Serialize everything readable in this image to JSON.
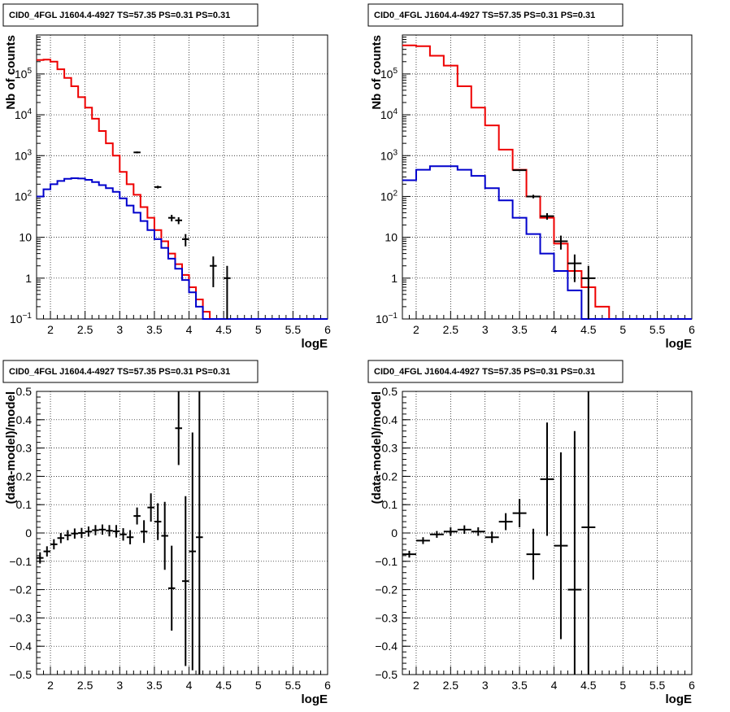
{
  "chart_data": [
    {
      "type": "line",
      "title": "CID0_4FGL J1604.4-4927 TS=57.35 PS=0.31 PS=0.31",
      "xlabel": "logE",
      "ylabel": "Nb of counts",
      "xlim": [
        1.8,
        6
      ],
      "ylim": [
        0.1,
        900000
      ],
      "yscale": "log",
      "grid": true,
      "xticks": [
        "2",
        "2.5",
        "3",
        "3.5",
        "4",
        "4.5",
        "5",
        "5.5",
        "6"
      ],
      "xtick_values": [
        2,
        2.5,
        3,
        3.5,
        4,
        4.5,
        5,
        5.5,
        6
      ],
      "yticks": [
        {
          "value": 0.1,
          "base": "10",
          "exp": "−1"
        },
        {
          "value": 1,
          "base": "1",
          "exp": ""
        },
        {
          "value": 10,
          "base": "10",
          "exp": ""
        },
        {
          "value": 100,
          "base": "10",
          "exp": "2"
        },
        {
          "value": 1000,
          "base": "10",
          "exp": "3"
        },
        {
          "value": 10000,
          "base": "10",
          "exp": "4"
        },
        {
          "value": 100000,
          "base": "10",
          "exp": "5"
        }
      ],
      "series": [
        {
          "color": "#ee0000",
          "style": "step",
          "edges": [
            1.8,
            1.9,
            2.0,
            2.1,
            2.2,
            2.3,
            2.4,
            2.5,
            2.6,
            2.7,
            2.8,
            2.9,
            3.0,
            3.1,
            3.2,
            3.3,
            3.4,
            3.5,
            3.6,
            3.7,
            3.8,
            3.9,
            4.0,
            4.1,
            4.2,
            4.3,
            4.4,
            4.5,
            4.6,
            4.7,
            4.8,
            4.9,
            5.0,
            5.1,
            5.2,
            5.3,
            5.4,
            5.5,
            5.6,
            5.7,
            5.8,
            5.9,
            6.0
          ],
          "values": [
            220000,
            225000,
            200000,
            130000,
            80000,
            50000,
            27000,
            15000,
            8000,
            4000,
            2000,
            1000,
            400,
            200,
            110,
            55,
            30,
            15,
            8,
            4,
            2.2,
            1.2,
            0.6,
            0.3,
            0.15,
            0.1,
            0.1,
            0.1,
            0.1,
            0.1,
            0.1,
            0.1,
            0.1,
            0.1,
            0.1,
            0.1,
            0.1,
            0.1,
            0.1,
            0.1,
            0.1,
            0.1
          ]
        },
        {
          "color": "#0000cc",
          "style": "step",
          "edges": [
            1.8,
            1.9,
            2.0,
            2.1,
            2.2,
            2.3,
            2.4,
            2.5,
            2.6,
            2.7,
            2.8,
            2.9,
            3.0,
            3.1,
            3.2,
            3.3,
            3.4,
            3.5,
            3.6,
            3.7,
            3.8,
            3.9,
            4.0,
            4.1,
            4.2,
            4.3,
            4.4,
            4.5,
            4.6,
            4.7,
            4.8,
            4.9,
            5.0,
            5.1,
            5.2,
            5.3,
            5.4,
            5.5,
            5.6,
            5.7,
            5.8,
            5.9,
            6.0
          ],
          "values": [
            100,
            150,
            200,
            240,
            270,
            280,
            275,
            255,
            225,
            190,
            160,
            130,
            90,
            60,
            40,
            25,
            15,
            9,
            5.5,
            3,
            1.7,
            0.9,
            0.45,
            0.2,
            0.1,
            0.1,
            0.1,
            0.1,
            0.1,
            0.1,
            0.1,
            0.1,
            0.1,
            0.1,
            0.1,
            0.1,
            0.1,
            0.1,
            0.1,
            0.1,
            0.1,
            0.1
          ]
        },
        {
          "color": "#000000",
          "style": "errorbar",
          "points": [
            {
              "x": 3.25,
              "y": 1200,
              "xerr": 0.05,
              "yerr": 60
            },
            {
              "x": 3.55,
              "y": 170,
              "xerr": 0.05,
              "yerr": 13
            },
            {
              "x": 3.75,
              "y": 30,
              "xerr": 0.05,
              "yerr": 5.5
            },
            {
              "x": 3.85,
              "y": 26,
              "xerr": 0.05,
              "yerr": 5
            },
            {
              "x": 3.95,
              "y": 9,
              "xerr": 0.05,
              "yerr": 3
            },
            {
              "x": 4.35,
              "y": 2,
              "xerr": 0.05,
              "yerr": 1.4
            },
            {
              "x": 4.55,
              "y": 1,
              "xerr": 0.05,
              "yerr": 1
            }
          ]
        }
      ]
    },
    {
      "type": "line",
      "title": "CID0_4FGL J1604.4-4927 TS=57.35 PS=0.31 PS=0.31",
      "xlabel": "logE",
      "ylabel": "Nb of counts",
      "xlim": [
        1.8,
        6
      ],
      "ylim": [
        0.1,
        900000
      ],
      "yscale": "log",
      "grid": true,
      "xticks": [
        "2",
        "2.5",
        "3",
        "3.5",
        "4",
        "4.5",
        "5",
        "5.5",
        "6"
      ],
      "xtick_values": [
        2,
        2.5,
        3,
        3.5,
        4,
        4.5,
        5,
        5.5,
        6
      ],
      "yticks": [
        {
          "value": 0.1,
          "base": "10",
          "exp": "−1"
        },
        {
          "value": 1,
          "base": "1",
          "exp": ""
        },
        {
          "value": 10,
          "base": "10",
          "exp": ""
        },
        {
          "value": 100,
          "base": "10",
          "exp": "2"
        },
        {
          "value": 1000,
          "base": "10",
          "exp": "3"
        },
        {
          "value": 10000,
          "base": "10",
          "exp": "4"
        },
        {
          "value": 100000,
          "base": "10",
          "exp": "5"
        }
      ],
      "series": [
        {
          "color": "#ee0000",
          "style": "step",
          "edges": [
            1.8,
            2.0,
            2.2,
            2.4,
            2.6,
            2.8,
            3.0,
            3.2,
            3.4,
            3.6,
            3.8,
            4.0,
            4.2,
            4.4,
            4.6,
            4.8,
            5.0,
            5.2,
            5.4,
            5.6,
            5.8,
            6.0
          ],
          "values": [
            500000,
            480000,
            280000,
            160000,
            50000,
            15000,
            5500,
            1400,
            450,
            100,
            30,
            7,
            1.5,
            0.6,
            0.2,
            0.1,
            0.1,
            0.1,
            0.1,
            0.1,
            0.1
          ],
          "last_visible_edge": 5.0
        },
        {
          "color": "#0000cc",
          "style": "step",
          "edges": [
            1.8,
            2.0,
            2.2,
            2.4,
            2.6,
            2.8,
            3.0,
            3.2,
            3.4,
            3.6,
            3.8,
            4.0,
            4.2,
            4.4,
            4.6,
            4.8,
            5.0,
            5.2,
            5.4,
            5.6,
            5.8,
            6.0
          ],
          "values": [
            250,
            450,
            550,
            550,
            450,
            320,
            160,
            80,
            30,
            12,
            4,
            1.5,
            0.5,
            0.1,
            0.1,
            0.1,
            0.1,
            0.1,
            0.1,
            0.1,
            0.1
          ]
        },
        {
          "color": "#000000",
          "style": "errorbar",
          "points": [
            {
              "x": 3.5,
              "y": 440,
              "xerr": 0.1,
              "yerr": 21
            },
            {
              "x": 3.7,
              "y": 100,
              "xerr": 0.1,
              "yerr": 10
            },
            {
              "x": 3.9,
              "y": 33,
              "xerr": 0.1,
              "yerr": 6
            },
            {
              "x": 4.1,
              "y": 8,
              "xerr": 0.1,
              "yerr": 3
            },
            {
              "x": 4.3,
              "y": 2.3,
              "xerr": 0.1,
              "yerr": 1.5
            },
            {
              "x": 4.5,
              "y": 1,
              "xerr": 0.1,
              "yerr": 1
            }
          ]
        }
      ]
    },
    {
      "type": "scatter",
      "title": "CID0_4FGL J1604.4-4927 TS=57.35 PS=0.31 PS=0.31",
      "xlabel": "logE",
      "ylabel": "(data-model)/model",
      "xlim": [
        1.8,
        6
      ],
      "ylim": [
        -0.5,
        0.5
      ],
      "grid": true,
      "xticks": [
        "2",
        "2.5",
        "3",
        "3.5",
        "4",
        "4.5",
        "5",
        "5.5",
        "6"
      ],
      "xtick_values": [
        2,
        2.5,
        3,
        3.5,
        4,
        4.5,
        5,
        5.5,
        6
      ],
      "yticks": [
        "0.5",
        "0.4",
        "0.3",
        "0.2",
        "0.1",
        "0",
        "−0.1",
        "−0.2",
        "−0.3",
        "−0.4",
        "−0.5"
      ],
      "ytick_values": [
        0.5,
        0.4,
        0.3,
        0.2,
        0.1,
        0,
        -0.1,
        -0.2,
        -0.3,
        -0.4,
        -0.5
      ],
      "series": [
        {
          "color": "#000000",
          "style": "errorbar",
          "points": [
            {
              "x": 1.85,
              "y": -0.088,
              "xerr": 0.05,
              "yerr": 0.02
            },
            {
              "x": 1.95,
              "y": -0.065,
              "xerr": 0.05,
              "yerr": 0.018
            },
            {
              "x": 2.05,
              "y": -0.04,
              "xerr": 0.05,
              "yerr": 0.018
            },
            {
              "x": 2.15,
              "y": -0.018,
              "xerr": 0.05,
              "yerr": 0.018
            },
            {
              "x": 2.25,
              "y": -0.008,
              "xerr": 0.05,
              "yerr": 0.018
            },
            {
              "x": 2.35,
              "y": -0.002,
              "xerr": 0.05,
              "yerr": 0.018
            },
            {
              "x": 2.45,
              "y": 0.0,
              "xerr": 0.05,
              "yerr": 0.018
            },
            {
              "x": 2.55,
              "y": 0.005,
              "xerr": 0.05,
              "yerr": 0.018
            },
            {
              "x": 2.65,
              "y": 0.01,
              "xerr": 0.05,
              "yerr": 0.018
            },
            {
              "x": 2.75,
              "y": 0.012,
              "xerr": 0.05,
              "yerr": 0.018
            },
            {
              "x": 2.85,
              "y": 0.008,
              "xerr": 0.05,
              "yerr": 0.02
            },
            {
              "x": 2.95,
              "y": 0.006,
              "xerr": 0.05,
              "yerr": 0.022
            },
            {
              "x": 3.05,
              "y": -0.005,
              "xerr": 0.05,
              "yerr": 0.022
            },
            {
              "x": 3.15,
              "y": -0.015,
              "xerr": 0.05,
              "yerr": 0.025
            },
            {
              "x": 3.25,
              "y": 0.06,
              "xerr": 0.05,
              "yerr": 0.03
            },
            {
              "x": 3.35,
              "y": 0.005,
              "xerr": 0.05,
              "yerr": 0.04
            },
            {
              "x": 3.45,
              "y": 0.09,
              "xerr": 0.05,
              "yerr": 0.05
            },
            {
              "x": 3.55,
              "y": 0.04,
              "xerr": 0.05,
              "yerr": 0.065
            },
            {
              "x": 3.65,
              "y": -0.01,
              "xerr": 0.05,
              "yerr": 0.12
            },
            {
              "x": 3.75,
              "y": -0.195,
              "xerr": 0.05,
              "yerr": 0.15
            },
            {
              "x": 3.85,
              "y": 0.37,
              "xerr": 0.05,
              "yerr": 0.13
            },
            {
              "x": 3.95,
              "y": -0.17,
              "xerr": 0.05,
              "yerr": 0.3
            },
            {
              "x": 4.05,
              "y": -0.065,
              "xerr": 0.05,
              "yerr": 0.42
            },
            {
              "x": 4.15,
              "y": -0.015,
              "xerr": 0.05,
              "yerr": 0.6
            }
          ]
        }
      ]
    },
    {
      "type": "scatter",
      "title": "CID0_4FGL J1604.4-4927 TS=57.35 PS=0.31 PS=0.31",
      "xlabel": "logE",
      "ylabel": "(data-model)/model",
      "xlim": [
        1.8,
        6
      ],
      "ylim": [
        -0.5,
        0.5
      ],
      "grid": true,
      "xticks": [
        "2",
        "2.5",
        "3",
        "3.5",
        "4",
        "4.5",
        "5",
        "5.5",
        "6"
      ],
      "xtick_values": [
        2,
        2.5,
        3,
        3.5,
        4,
        4.5,
        5,
        5.5,
        6
      ],
      "yticks": [
        "0.5",
        "0.4",
        "0.3",
        "0.2",
        "0.1",
        "0",
        "−0.1",
        "−0.2",
        "−0.3",
        "−0.4",
        "−0.5"
      ],
      "ytick_values": [
        0.5,
        0.4,
        0.3,
        0.2,
        0.1,
        0,
        -0.1,
        -0.2,
        -0.3,
        -0.4,
        -0.5
      ],
      "series": [
        {
          "color": "#000000",
          "style": "errorbar",
          "points": [
            {
              "x": 1.9,
              "y": -0.075,
              "xerr": 0.1,
              "yerr": 0.012
            },
            {
              "x": 2.1,
              "y": -0.027,
              "xerr": 0.1,
              "yerr": 0.012
            },
            {
              "x": 2.3,
              "y": -0.005,
              "xerr": 0.1,
              "yerr": 0.012
            },
            {
              "x": 2.5,
              "y": 0.005,
              "xerr": 0.1,
              "yerr": 0.015
            },
            {
              "x": 2.7,
              "y": 0.012,
              "xerr": 0.1,
              "yerr": 0.015
            },
            {
              "x": 2.9,
              "y": 0.005,
              "xerr": 0.1,
              "yerr": 0.015
            },
            {
              "x": 3.1,
              "y": -0.015,
              "xerr": 0.1,
              "yerr": 0.02
            },
            {
              "x": 3.3,
              "y": 0.04,
              "xerr": 0.1,
              "yerr": 0.03
            },
            {
              "x": 3.5,
              "y": 0.07,
              "xerr": 0.1,
              "yerr": 0.05
            },
            {
              "x": 3.7,
              "y": -0.075,
              "xerr": 0.1,
              "yerr": 0.09
            },
            {
              "x": 3.9,
              "y": 0.19,
              "xerr": 0.1,
              "yerr": 0.2
            },
            {
              "x": 4.1,
              "y": -0.045,
              "xerr": 0.1,
              "yerr": 0.33
            },
            {
              "x": 4.3,
              "y": -0.2,
              "xerr": 0.1,
              "yerr": 0.56
            },
            {
              "x": 4.5,
              "y": 0.02,
              "xerr": 0.1,
              "yerr": 0.8
            }
          ]
        }
      ]
    }
  ]
}
